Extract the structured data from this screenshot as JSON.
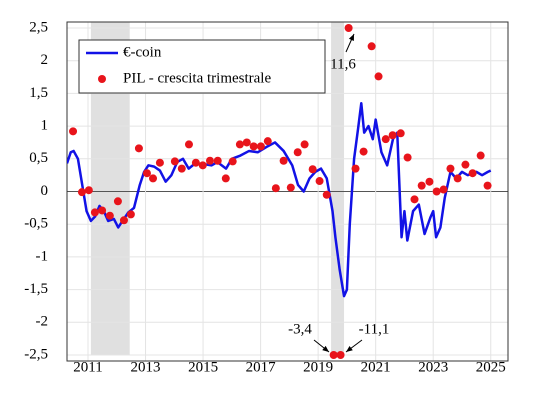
{
  "chart_data": {
    "type": "line_scatter",
    "xlim": [
      2010.27,
      2025.6
    ],
    "xticks": [
      2011,
      2013,
      2015,
      2017,
      2019,
      2021,
      2023,
      2025
    ],
    "ylim": [
      -2.5,
      2.5
    ],
    "yticks": [
      {
        "value": -2.5,
        "label": "-2,5"
      },
      -2,
      {
        "value": -1.5,
        "label": "-1,5"
      },
      -1,
      {
        "value": -0.5,
        "label": "-0,5"
      },
      0,
      {
        "value": 0.5,
        "label": "0,5"
      },
      1,
      {
        "value": 1.5,
        "label": "1,5"
      },
      2,
      {
        "value": 2.5,
        "label": "2,5"
      }
    ],
    "grid": true,
    "legend": "upper left",
    "shaded": [
      [
        2011.1,
        2012.45
      ],
      [
        2019.45,
        2019.9
      ]
    ],
    "shaded_color": "#e0e0e0",
    "series": [
      {
        "name": "€-coin",
        "type": "line",
        "color": "#1212e6",
        "x": [
          2010.27,
          2010.4,
          2010.5,
          2010.65,
          2010.8,
          2010.95,
          2011.1,
          2011.25,
          2011.4,
          2011.55,
          2011.7,
          2011.9,
          2012.05,
          2012.2,
          2012.4,
          2012.6,
          2012.8,
          2012.95,
          2013.1,
          2013.3,
          2013.5,
          2013.7,
          2013.9,
          2014.1,
          2014.3,
          2014.5,
          2014.7,
          2015.0,
          2015.3,
          2015.5,
          2015.8,
          2016.0,
          2016.3,
          2016.6,
          2016.9,
          2017.2,
          2017.5,
          2017.8,
          2018.1,
          2018.3,
          2018.5,
          2018.7,
          2018.9,
          2019.1,
          2019.3,
          2019.5,
          2019.6,
          2019.75,
          2019.9,
          2020.0,
          2020.1,
          2020.25,
          2020.4,
          2020.5,
          2020.6,
          2020.75,
          2020.9,
          2021.0,
          2021.2,
          2021.4,
          2021.6,
          2021.75,
          2021.9,
          2022.0,
          2022.1,
          2022.3,
          2022.5,
          2022.7,
          2022.9,
          2023.0,
          2023.1,
          2023.25,
          2023.4,
          2023.6,
          2023.8,
          2024.0,
          2024.2,
          2024.5,
          2024.7,
          2024.9,
          2025.0
        ],
        "values": [
          0.43,
          0.6,
          0.62,
          0.5,
          0.1,
          -0.3,
          -0.45,
          -0.38,
          -0.22,
          -0.3,
          -0.45,
          -0.42,
          -0.55,
          -0.45,
          -0.32,
          -0.25,
          0.1,
          0.3,
          0.4,
          0.38,
          0.32,
          0.15,
          0.25,
          0.45,
          0.5,
          0.35,
          0.42,
          0.42,
          0.4,
          0.45,
          0.35,
          0.5,
          0.55,
          0.62,
          0.6,
          0.68,
          0.75,
          0.62,
          0.4,
          0.1,
          0.0,
          0.2,
          0.3,
          0.35,
          0.2,
          -0.3,
          -0.7,
          -1.2,
          -1.6,
          -1.5,
          -0.5,
          0.5,
          1.0,
          1.35,
          0.9,
          1.0,
          0.8,
          1.1,
          0.6,
          0.4,
          0.8,
          0.9,
          -0.7,
          -0.3,
          -0.75,
          -0.3,
          -0.2,
          -0.65,
          -0.4,
          -0.3,
          -0.7,
          -0.55,
          -0.1,
          0.3,
          0.2,
          0.3,
          0.25,
          0.3,
          0.25,
          0.3,
          0.32
        ]
      },
      {
        "name": "PIL - crescita trimestrale",
        "type": "scatter",
        "color": "#e8141b",
        "x": [
          2010.48,
          2010.79,
          2011.03,
          2011.24,
          2011.49,
          2011.76,
          2012.04,
          2012.25,
          2012.49,
          2012.77,
          2013.05,
          2013.26,
          2013.5,
          2014.02,
          2014.26,
          2014.51,
          2014.75,
          2014.99,
          2015.24,
          2015.51,
          2015.79,
          2016.03,
          2016.28,
          2016.52,
          2016.76,
          2017.01,
          2017.25,
          2017.53,
          2017.8,
          2018.05,
          2018.29,
          2018.53,
          2018.81,
          2019.05,
          2019.3,
          2019.54,
          2019.78,
          2020.06,
          2020.3,
          2020.58,
          2020.86,
          2021.1,
          2021.35,
          2021.59,
          2021.87,
          2022.11,
          2022.35,
          2022.6,
          2022.87,
          2023.12,
          2023.36,
          2023.6,
          2023.85,
          2024.12,
          2024.37,
          2024.65,
          2024.89
        ],
        "values": [
          0.92,
          -0.01,
          0.02,
          -0.32,
          -0.29,
          -0.37,
          -0.15,
          -0.44,
          -0.35,
          0.66,
          0.28,
          0.2,
          0.44,
          0.46,
          0.35,
          0.72,
          0.44,
          0.4,
          0.47,
          0.47,
          0.2,
          0.46,
          0.72,
          0.75,
          0.69,
          0.69,
          0.77,
          0.05,
          0.47,
          0.06,
          0.6,
          0.72,
          0.34,
          0.16,
          -0.05,
          -2.5,
          -2.5,
          2.5,
          0.35,
          0.61,
          2.22,
          1.76,
          0.8,
          0.86,
          0.89,
          0.52,
          -0.12,
          0.09,
          0.15,
          0.0,
          0.03,
          0.35,
          0.2,
          0.41,
          0.28,
          0.55,
          0.09
        ]
      }
    ],
    "annotations": [
      {
        "text": "11,6"
      },
      {
        "text": "-3,4"
      },
      {
        "text": "-11,1"
      }
    ]
  }
}
